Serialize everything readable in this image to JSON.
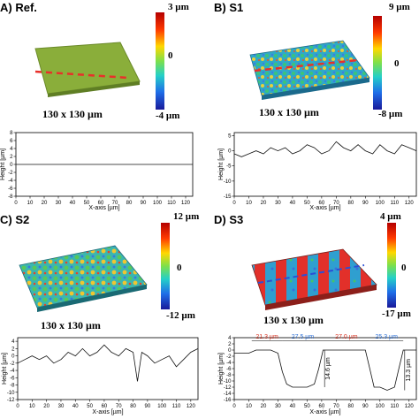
{
  "figure": {
    "panels": [
      {
        "id": "A",
        "label": "A) Ref.",
        "dim_label": "130 x 130 µm",
        "colorbar": {
          "max": "3 µm",
          "mid": "0",
          "min": "-4 µm"
        }
      },
      {
        "id": "B",
        "label": "B) S1",
        "dim_label": "130 x 130 µm",
        "colorbar": {
          "max": "9 µm",
          "mid": "0",
          "min": "-8 µm"
        }
      },
      {
        "id": "C",
        "label": "C) S2",
        "dim_label": "130 x 130 µm",
        "colorbar": {
          "max": "12 µm",
          "mid": "0",
          "min": "-12 µm"
        }
      },
      {
        "id": "D",
        "label": "D) S3",
        "dim_label": "130 x 130 µm",
        "colorbar": {
          "max": "4 µm",
          "mid": "0",
          "min": "-17 µm"
        }
      }
    ],
    "annotations": {
      "widths": [
        "21.3 µm",
        "27.5 µm",
        "27.0 µm",
        "25.3 µm"
      ],
      "depths": [
        "14.6 µm",
        "13.3 µm"
      ]
    },
    "colors": {
      "red": "#d7301f",
      "blue": "#2b6fd6",
      "surface_ref": "#8fb33a",
      "dash": "#e8302a"
    }
  },
  "chart_data": [
    {
      "panel": "A",
      "type": "line",
      "xlabel": "X-axis [µm]",
      "ylabel": "Height [µm]",
      "xticks": [
        "0",
        "10",
        "20",
        "30",
        "40",
        "50",
        "60",
        "70",
        "80",
        "90",
        "100",
        "110",
        "120"
      ],
      "yticks": [
        "8",
        "6",
        "4",
        "2",
        "0",
        "-2",
        "-4",
        "-6",
        "-8"
      ],
      "xlim": [
        0,
        125
      ],
      "ylim": [
        -8,
        8
      ],
      "x": [
        0,
        125
      ],
      "y": [
        0,
        0
      ]
    },
    {
      "panel": "B",
      "type": "line",
      "xlabel": "X-axis [µm]",
      "ylabel": "Height [µm]",
      "xticks": [
        "0",
        "10",
        "20",
        "30",
        "40",
        "50",
        "60",
        "70",
        "80",
        "90",
        "100",
        "110",
        "120"
      ],
      "yticks": [
        "5",
        "0",
        "-5",
        "-10",
        "-15"
      ],
      "xlim": [
        0,
        125
      ],
      "ylim": [
        -15,
        6
      ],
      "x": [
        0,
        5,
        10,
        15,
        20,
        25,
        30,
        35,
        40,
        45,
        50,
        55,
        60,
        65,
        70,
        75,
        80,
        85,
        90,
        95,
        100,
        105,
        110,
        115,
        120,
        125
      ],
      "y": [
        -1,
        -2,
        -1,
        0,
        -1,
        1,
        0,
        1,
        -1,
        0,
        2,
        1,
        -1,
        0,
        3,
        1,
        0,
        2,
        0,
        -1,
        2,
        0,
        -1,
        2,
        1,
        0
      ]
    },
    {
      "panel": "C",
      "type": "line",
      "xlabel": "X-axis [µm]",
      "ylabel": "Height [µm]",
      "xticks": [
        "0",
        "10",
        "20",
        "30",
        "40",
        "50",
        "60",
        "70",
        "80",
        "90",
        "100",
        "110",
        "120"
      ],
      "yticks": [
        "4",
        "2",
        "0",
        "-2",
        "-4",
        "-6",
        "-8",
        "-10",
        "-12"
      ],
      "xlim": [
        0,
        125
      ],
      "ylim": [
        -12,
        5
      ],
      "x": [
        0,
        5,
        10,
        15,
        20,
        25,
        30,
        35,
        40,
        45,
        50,
        55,
        60,
        65,
        70,
        75,
        80,
        83,
        86,
        90,
        95,
        100,
        105,
        110,
        115,
        120,
        125
      ],
      "y": [
        -2,
        -1,
        0,
        -1,
        0,
        -2,
        -1,
        1,
        0,
        2,
        0,
        1,
        3,
        1,
        0,
        2,
        1,
        -7,
        1,
        0,
        -2,
        -1,
        0,
        -3,
        -1,
        1,
        2
      ]
    },
    {
      "panel": "D",
      "type": "line",
      "xlabel": "X-axis [µm]",
      "ylabel": "Height [µm]",
      "xticks": [
        "0",
        "10",
        "20",
        "30",
        "40",
        "50",
        "60",
        "70",
        "80",
        "90",
        "100",
        "110",
        "120"
      ],
      "yticks": [
        "4",
        "2",
        "0",
        "-2",
        "-4",
        "-6",
        "-8",
        "-10",
        "-12",
        "-14",
        "-16"
      ],
      "xlim": [
        0,
        125
      ],
      "ylim": [
        -16,
        4
      ],
      "x": [
        0,
        5,
        10,
        15,
        20,
        25,
        30,
        33,
        36,
        40,
        45,
        50,
        55,
        58,
        61,
        65,
        70,
        75,
        80,
        85,
        90,
        93,
        96,
        100,
        105,
        110,
        113,
        116,
        120,
        125
      ],
      "y": [
        -1,
        -1,
        -1,
        0,
        0,
        0,
        -1,
        -7,
        -11,
        -12,
        -12,
        -12,
        -11,
        -6,
        0,
        0,
        0,
        0,
        0,
        0,
        0,
        -6,
        -12,
        -12,
        -13,
        -12,
        -6,
        0,
        0,
        0
      ]
    }
  ]
}
